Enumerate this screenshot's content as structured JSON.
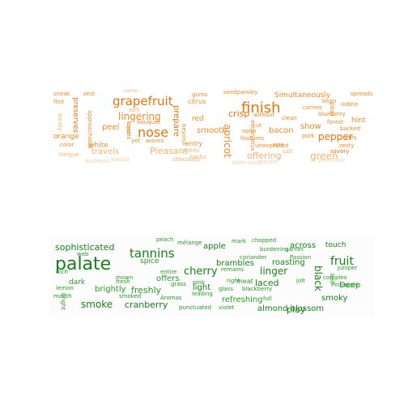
{
  "colors": {
    "orange_dark": "#e8730c",
    "orange": "#f08a2a",
    "orange_light": "#f6b172",
    "orange_pale": "#f9cfa5",
    "green_dark": "#1a7f1a",
    "green": "#2b9a2b",
    "green_light": "#4cb24c"
  },
  "top_cloud": {
    "words": [
      "sneak",
      "zest",
      "come",
      "gums",
      "seedparsley",
      "Simultaneously",
      "spreads",
      "flint",
      "preserves",
      "grapefruit",
      "soft",
      "citrus",
      "finish",
      "bean",
      "iodine",
      "barely",
      "approachable",
      "lingering",
      "bouquet",
      "crisp",
      "without",
      "carries",
      "pear",
      "backed",
      "layer",
      "prepare",
      "red",
      "eucalyptus",
      "clean",
      "blueberry",
      "forest",
      "hint",
      "orange",
      "peel",
      "nose",
      "beyond",
      "apricot",
      "cut",
      "show",
      "pepper",
      "color",
      "cassis",
      "yet",
      "waves",
      "smooth",
      "open",
      "bacon",
      "pork",
      "zesty",
      "white",
      "entry",
      "features",
      "tones",
      "tongue",
      "travels",
      "Pleasant",
      "notes",
      "unexpected",
      "ripe",
      "salt",
      "espresso",
      "vanilla",
      "chocolate",
      "herbs",
      "offering",
      "green",
      "taste buds",
      "tactile",
      "particular",
      "savory"
    ]
  },
  "bottom_cloud": {
    "words": [
      "peach",
      "mélange",
      "mark",
      "chopped",
      "sophisticated",
      "apple",
      "burdening",
      "garnet",
      "across",
      "touch",
      "palate",
      "tannins",
      "cherry",
      "coriander",
      "Passion",
      "fruit",
      "spice",
      "brambles",
      "roasting",
      "juniper",
      "Rich",
      "web",
      "entire",
      "remains",
      "linger",
      "black",
      "mown",
      "offers",
      "pink",
      "right",
      "meat",
      "jolt",
      "complex",
      "bell",
      "Pineapple",
      "dark",
      "fresh",
      "grass",
      "light",
      "glass",
      "blackberry",
      "laced",
      "Deep",
      "lemon",
      "brightly",
      "freshly",
      "leading",
      "full",
      "mouth",
      "smoked",
      "Aromas",
      "refreshing",
      "smoky",
      "bright",
      "smoke",
      "cranberry",
      "punctuated",
      "violet",
      "almond blossom",
      "play"
    ]
  }
}
